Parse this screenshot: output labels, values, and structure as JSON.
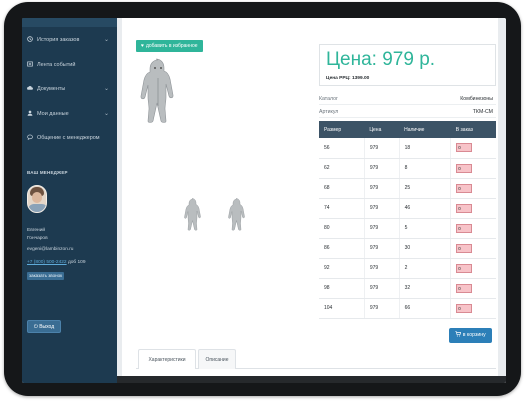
{
  "sidebar": {
    "items": [
      {
        "label": "История заказов",
        "icon": "history-icon",
        "chevron": true
      },
      {
        "label": "Лента событий",
        "icon": "feed-icon",
        "chevron": false
      },
      {
        "label": "Документы",
        "icon": "cloud-icon",
        "chevron": true
      },
      {
        "label": "Мои данные",
        "icon": "user-icon",
        "chevron": true
      },
      {
        "label": "Общение с менеджером",
        "icon": "chat-icon",
        "chevron": false
      }
    ],
    "manager_heading": "ВАШ МЕНЕДЖЕР",
    "manager": {
      "first_name": "Евгений",
      "last_name": "Гончаров",
      "email": "evgeni@lambinzon.ru",
      "phone": "+7 (800) 500-2422",
      "extension": "доб 109"
    },
    "call_button": "заказать звонок",
    "exit_button": "Выход",
    "colors": {
      "background": "#1d3a50",
      "accent": "#3a6d93"
    }
  },
  "product": {
    "favorite_button": "добавить в избранное",
    "price": "Цена: 979 р.",
    "rrp": "Цена РРЦ: 1399.00",
    "info": [
      {
        "label": "Каталог",
        "value": "Комбинезоны"
      },
      {
        "label": "Артикул",
        "value": "ТКМ-СМ"
      }
    ]
  },
  "sizes_table": {
    "headers": [
      "Размер",
      "Цена",
      "Наличие",
      "В заказ"
    ],
    "rows": [
      {
        "size": "56",
        "price": "979",
        "stock": "18",
        "qty": "0"
      },
      {
        "size": "62",
        "price": "979",
        "stock": "8",
        "qty": "0"
      },
      {
        "size": "68",
        "price": "979",
        "stock": "25",
        "qty": "0"
      },
      {
        "size": "74",
        "price": "979",
        "stock": "46",
        "qty": "0"
      },
      {
        "size": "80",
        "price": "979",
        "stock": "5",
        "qty": "0"
      },
      {
        "size": "86",
        "price": "979",
        "stock": "30",
        "qty": "0"
      },
      {
        "size": "92",
        "price": "979",
        "stock": "2",
        "qty": "0"
      },
      {
        "size": "98",
        "price": "979",
        "stock": "32",
        "qty": "0"
      },
      {
        "size": "104",
        "price": "979",
        "stock": "66",
        "qty": "0"
      }
    ]
  },
  "cart_button": "в корзину",
  "tabs": [
    "Характеристики",
    "Описание"
  ],
  "colors": {
    "accent_green": "#2fb59a",
    "table_header": "#3c5366",
    "cart_blue": "#2c7fb8",
    "qty_pink": "#f7c3c8"
  }
}
